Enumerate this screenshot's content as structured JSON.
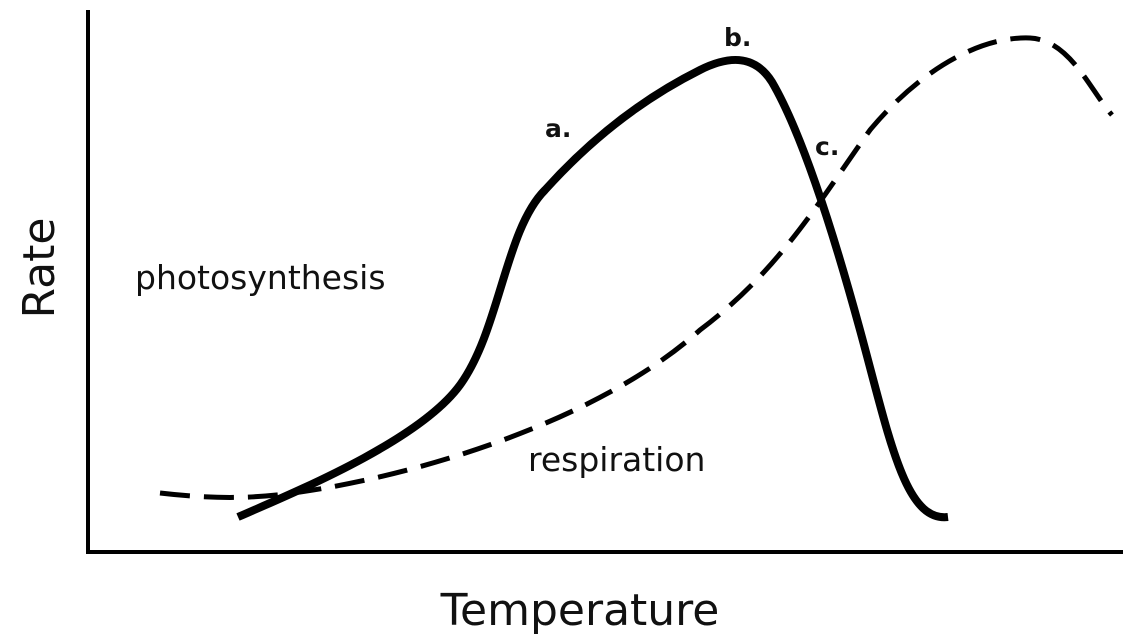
{
  "axes": {
    "y_label": "Rate",
    "x_label": "Temperature"
  },
  "curves": [
    {
      "label": "photosynthesis"
    },
    {
      "label": "respiration"
    }
  ],
  "points": [
    {
      "label": "a."
    },
    {
      "label": "b."
    },
    {
      "label": "c."
    }
  ]
}
